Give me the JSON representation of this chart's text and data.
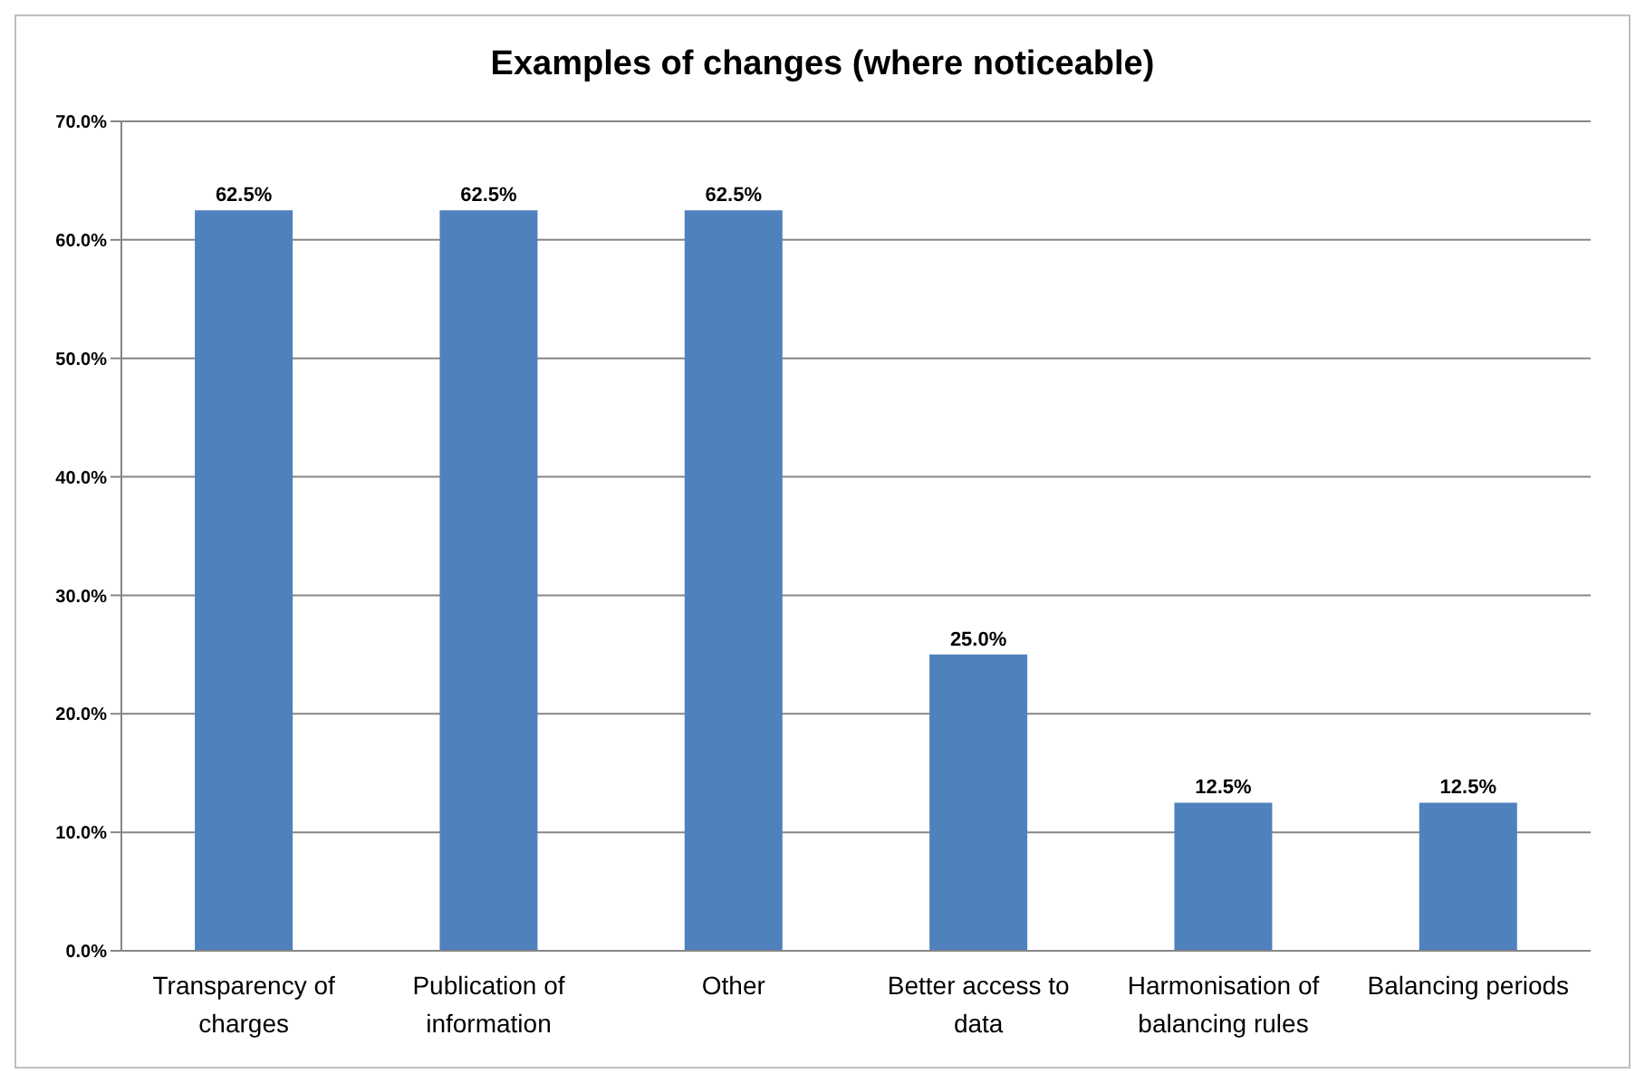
{
  "chart_data": {
    "type": "bar",
    "title": "Examples of changes (where noticeable)",
    "categories": [
      "Transparency of charges",
      "Publication of information",
      "Other",
      "Better access to data",
      "Harmonisation of balancing rules",
      "Balancing periods"
    ],
    "values": [
      62.5,
      62.5,
      62.5,
      25.0,
      12.5,
      12.5
    ],
    "value_labels": [
      "62.5%",
      "62.5%",
      "62.5%",
      "25.0%",
      "12.5%",
      "12.5%"
    ],
    "color": "#4f81bd",
    "ylim": [
      0,
      70
    ],
    "yticks": [
      {
        "value": 0,
        "label": "0.0%"
      },
      {
        "value": 10,
        "label": "10.0%"
      },
      {
        "value": 20,
        "label": "20.0%"
      },
      {
        "value": 30,
        "label": "30.0%"
      },
      {
        "value": 40,
        "label": "40.0%"
      },
      {
        "value": 50,
        "label": "50.0%"
      },
      {
        "value": 60,
        "label": "60.0%"
      },
      {
        "value": 70,
        "label": "70.0%"
      }
    ],
    "grid": "y",
    "legend": false
  }
}
